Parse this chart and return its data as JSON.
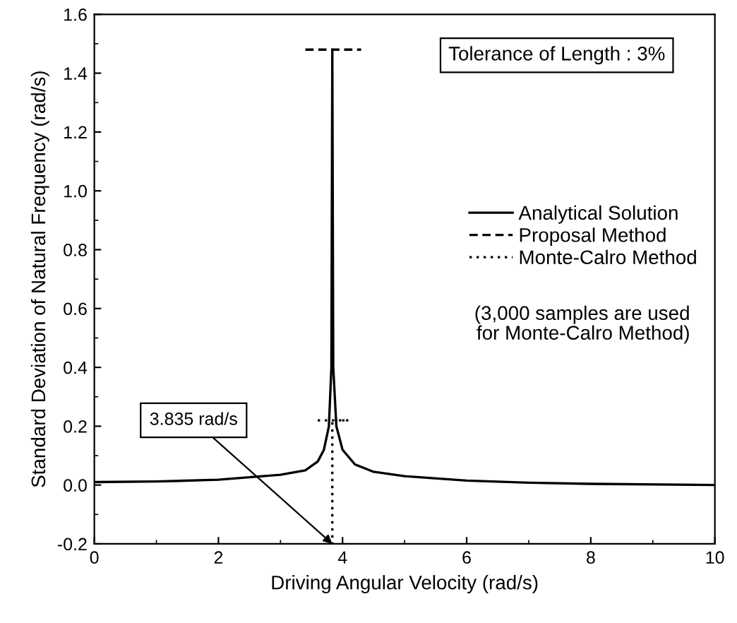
{
  "chart_data": {
    "type": "line",
    "xlabel": "Driving Angular Velocity (rad/s)",
    "ylabel": "Standard Deviation of Natural Frequency (rad/s)",
    "xlim": [
      0,
      10
    ],
    "ylim": [
      -0.2,
      1.6
    ],
    "xticks": [
      0,
      2,
      4,
      6,
      8,
      10
    ],
    "yticks": [
      -0.2,
      {
        "value": 0,
        "label": "0.0"
      },
      0.2,
      0.4,
      0.6,
      0.8,
      {
        "value": 1,
        "label": "1.0"
      },
      1.2,
      1.4,
      1.6
    ],
    "grid": false,
    "legend": "right",
    "series": [
      {
        "name": "Analytical Solution",
        "color": "#000000",
        "line_style": "solid",
        "x": [
          0,
          1,
          2,
          3,
          3.4,
          3.6,
          3.7,
          3.78,
          3.82,
          3.835,
          3.85,
          3.9,
          4.0,
          4.2,
          4.5,
          5,
          6,
          7,
          8,
          10
        ],
        "values": [
          0.01,
          0.012,
          0.018,
          0.035,
          0.05,
          0.08,
          0.12,
          0.2,
          0.4,
          1.48,
          0.4,
          0.2,
          0.12,
          0.07,
          0.045,
          0.03,
          0.015,
          0.008,
          0.004,
          0.0
        ]
      },
      {
        "name": "Proposal Method",
        "color": "#000000",
        "line_style": "dashed",
        "x": [
          3.4,
          4.3
        ],
        "values": [
          1.48,
          1.48
        ]
      },
      {
        "name": "Monte-Calro Method",
        "color": "#000000",
        "line_style": "dotted",
        "x": [
          3.6,
          4.1,
          3.835,
          3.835
        ],
        "values": [
          0.22,
          0.22,
          0.22,
          -0.2
        ]
      }
    ],
    "annotations": [
      {
        "text": "3.835 rad/s",
        "x": 3.835,
        "y": -0.2
      },
      "Tolerance of Length : 3%",
      "(3,000 samples are used\nfor Monte-Calro Method)"
    ]
  }
}
